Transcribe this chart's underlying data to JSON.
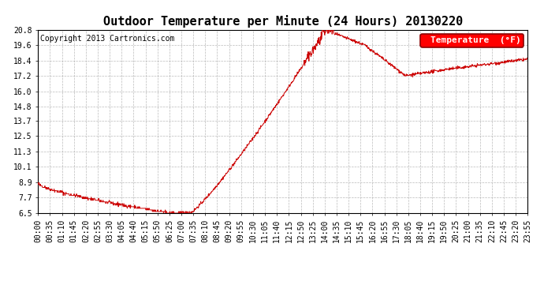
{
  "title": "Outdoor Temperature per Minute (24 Hours) 20130220",
  "copyright_text": "Copyright 2013 Cartronics.com",
  "legend_label": "Temperature  (°F)",
  "line_color": "#cc0000",
  "bg_color": "#ffffff",
  "grid_color": "#aaaaaa",
  "yticks": [
    6.5,
    7.7,
    8.9,
    10.1,
    11.3,
    12.5,
    13.7,
    14.8,
    16.0,
    17.2,
    18.4,
    19.6,
    20.8
  ],
  "xtick_labels": [
    "00:00",
    "00:35",
    "01:10",
    "01:45",
    "02:20",
    "02:55",
    "03:30",
    "04:05",
    "04:40",
    "05:15",
    "05:50",
    "06:25",
    "07:00",
    "07:35",
    "08:10",
    "08:45",
    "09:20",
    "09:55",
    "10:30",
    "11:05",
    "11:40",
    "12:15",
    "12:50",
    "13:25",
    "14:00",
    "14:35",
    "15:10",
    "15:45",
    "16:20",
    "16:55",
    "17:30",
    "18:05",
    "18:40",
    "19:15",
    "19:50",
    "20:25",
    "21:00",
    "21:35",
    "22:10",
    "22:45",
    "23:20",
    "23:55"
  ],
  "ylim": [
    6.5,
    20.8
  ],
  "title_fontsize": 11,
  "copyright_fontsize": 7,
  "legend_fontsize": 8,
  "tick_fontsize": 7
}
